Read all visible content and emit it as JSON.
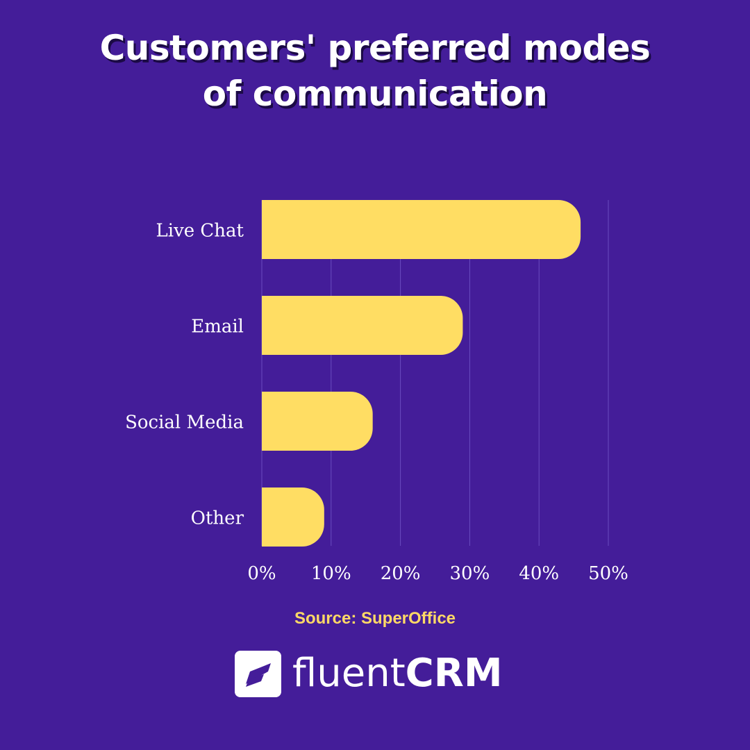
{
  "title": {
    "line1": "Customers' preferred modes",
    "line2": "of communication"
  },
  "chart_data": {
    "type": "bar",
    "orientation": "horizontal",
    "categories": [
      "Live Chat",
      "Email",
      "Social Media",
      "Other"
    ],
    "values": [
      46,
      29,
      16,
      9
    ],
    "unit": "%",
    "xlim": [
      0,
      50
    ],
    "xticks": [
      "0%",
      "10%",
      "20%",
      "30%",
      "40%",
      "50%"
    ],
    "grid": "vertical",
    "legend": "none",
    "bar_color": "#ffdd63",
    "gridline_color": "#6a4cc0",
    "label_color": "#ffffff"
  },
  "source": "Source: SuperOffice",
  "brand": {
    "name_light": "fluent",
    "name_bold": "CRM",
    "logo_icon": "fluentcrm-logo-icon"
  },
  "colors": {
    "background": "#441d99",
    "accent": "#ffd966",
    "title_shadow": "#1b0a45"
  }
}
